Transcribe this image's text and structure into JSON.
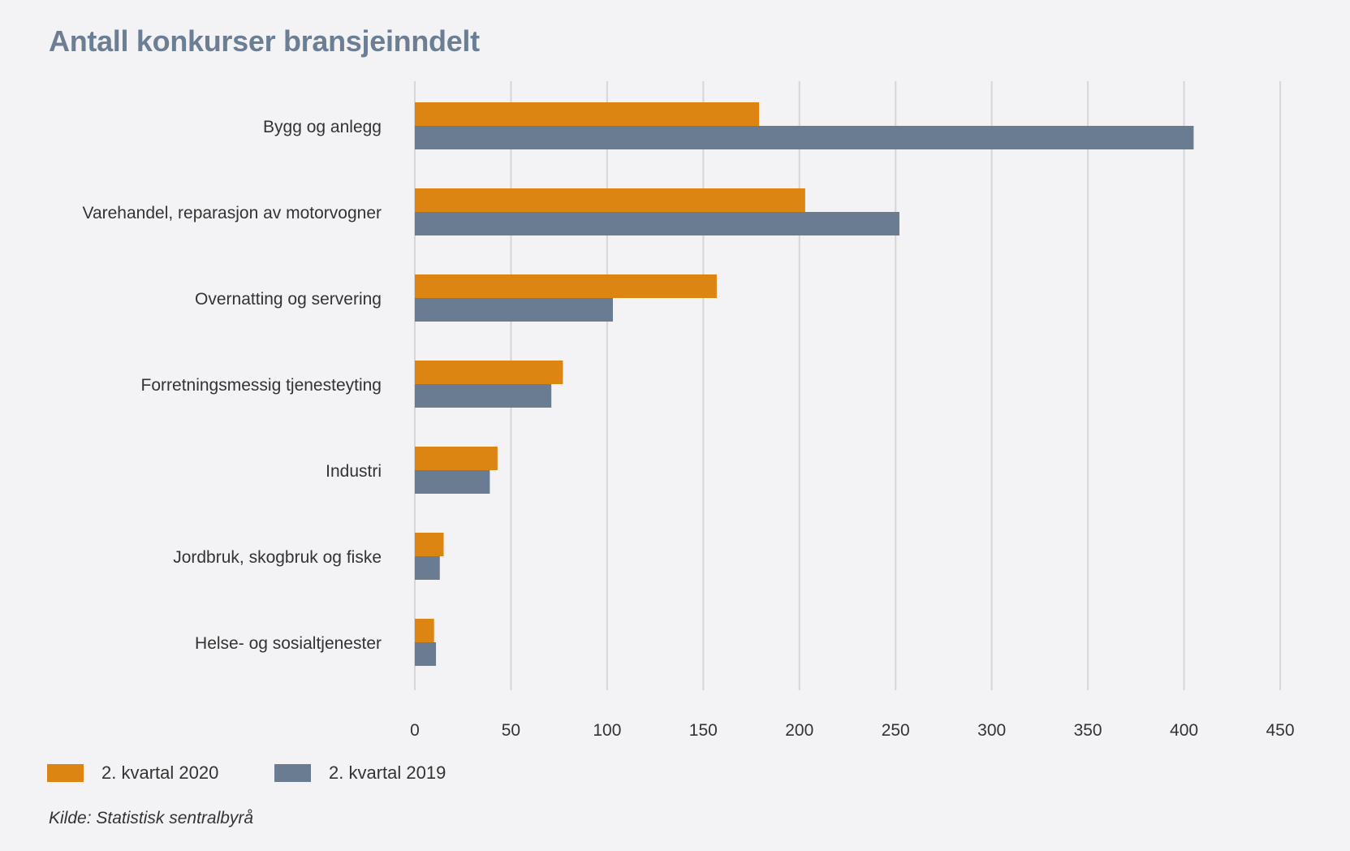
{
  "title": "Antall konkurser bransjeinndelt",
  "source": "Kilde: Statistisk sentralbyrå",
  "colors": {
    "series_2020": "#dd8512",
    "series_2019": "#6a7c92",
    "grid": "#d6d6da",
    "background": "#f3f3f5",
    "title": "#6b7e93",
    "text": "#333333"
  },
  "legend": [
    {
      "label": "2. kvartal 2020",
      "color": "#dd8512"
    },
    {
      "label": "2. kvartal 2019",
      "color": "#6a7c92"
    }
  ],
  "chart_data": {
    "type": "bar",
    "orientation": "horizontal",
    "title": "Antall konkurser bransjeinndelt",
    "xlabel": "",
    "ylabel": "",
    "xlim": [
      0,
      450
    ],
    "xticks": [
      0,
      50,
      100,
      150,
      200,
      250,
      300,
      350,
      400,
      450
    ],
    "grid": true,
    "legend_position": "bottom-left",
    "categories": [
      "Bygg og anlegg",
      "Varehandel, reparasjon av motorvogner",
      "Overnatting og servering",
      "Forretningsmessig tjenesteyting",
      "Industri",
      "Jordbruk, skogbruk og fiske",
      "Helse- og sosialtjenester"
    ],
    "series": [
      {
        "name": "2. kvartal 2020",
        "color": "#dd8512",
        "values": [
          179,
          203,
          157,
          77,
          43,
          15,
          10
        ]
      },
      {
        "name": "2. kvartal 2019",
        "color": "#6a7c92",
        "values": [
          405,
          252,
          103,
          71,
          39,
          13,
          11
        ]
      }
    ]
  }
}
